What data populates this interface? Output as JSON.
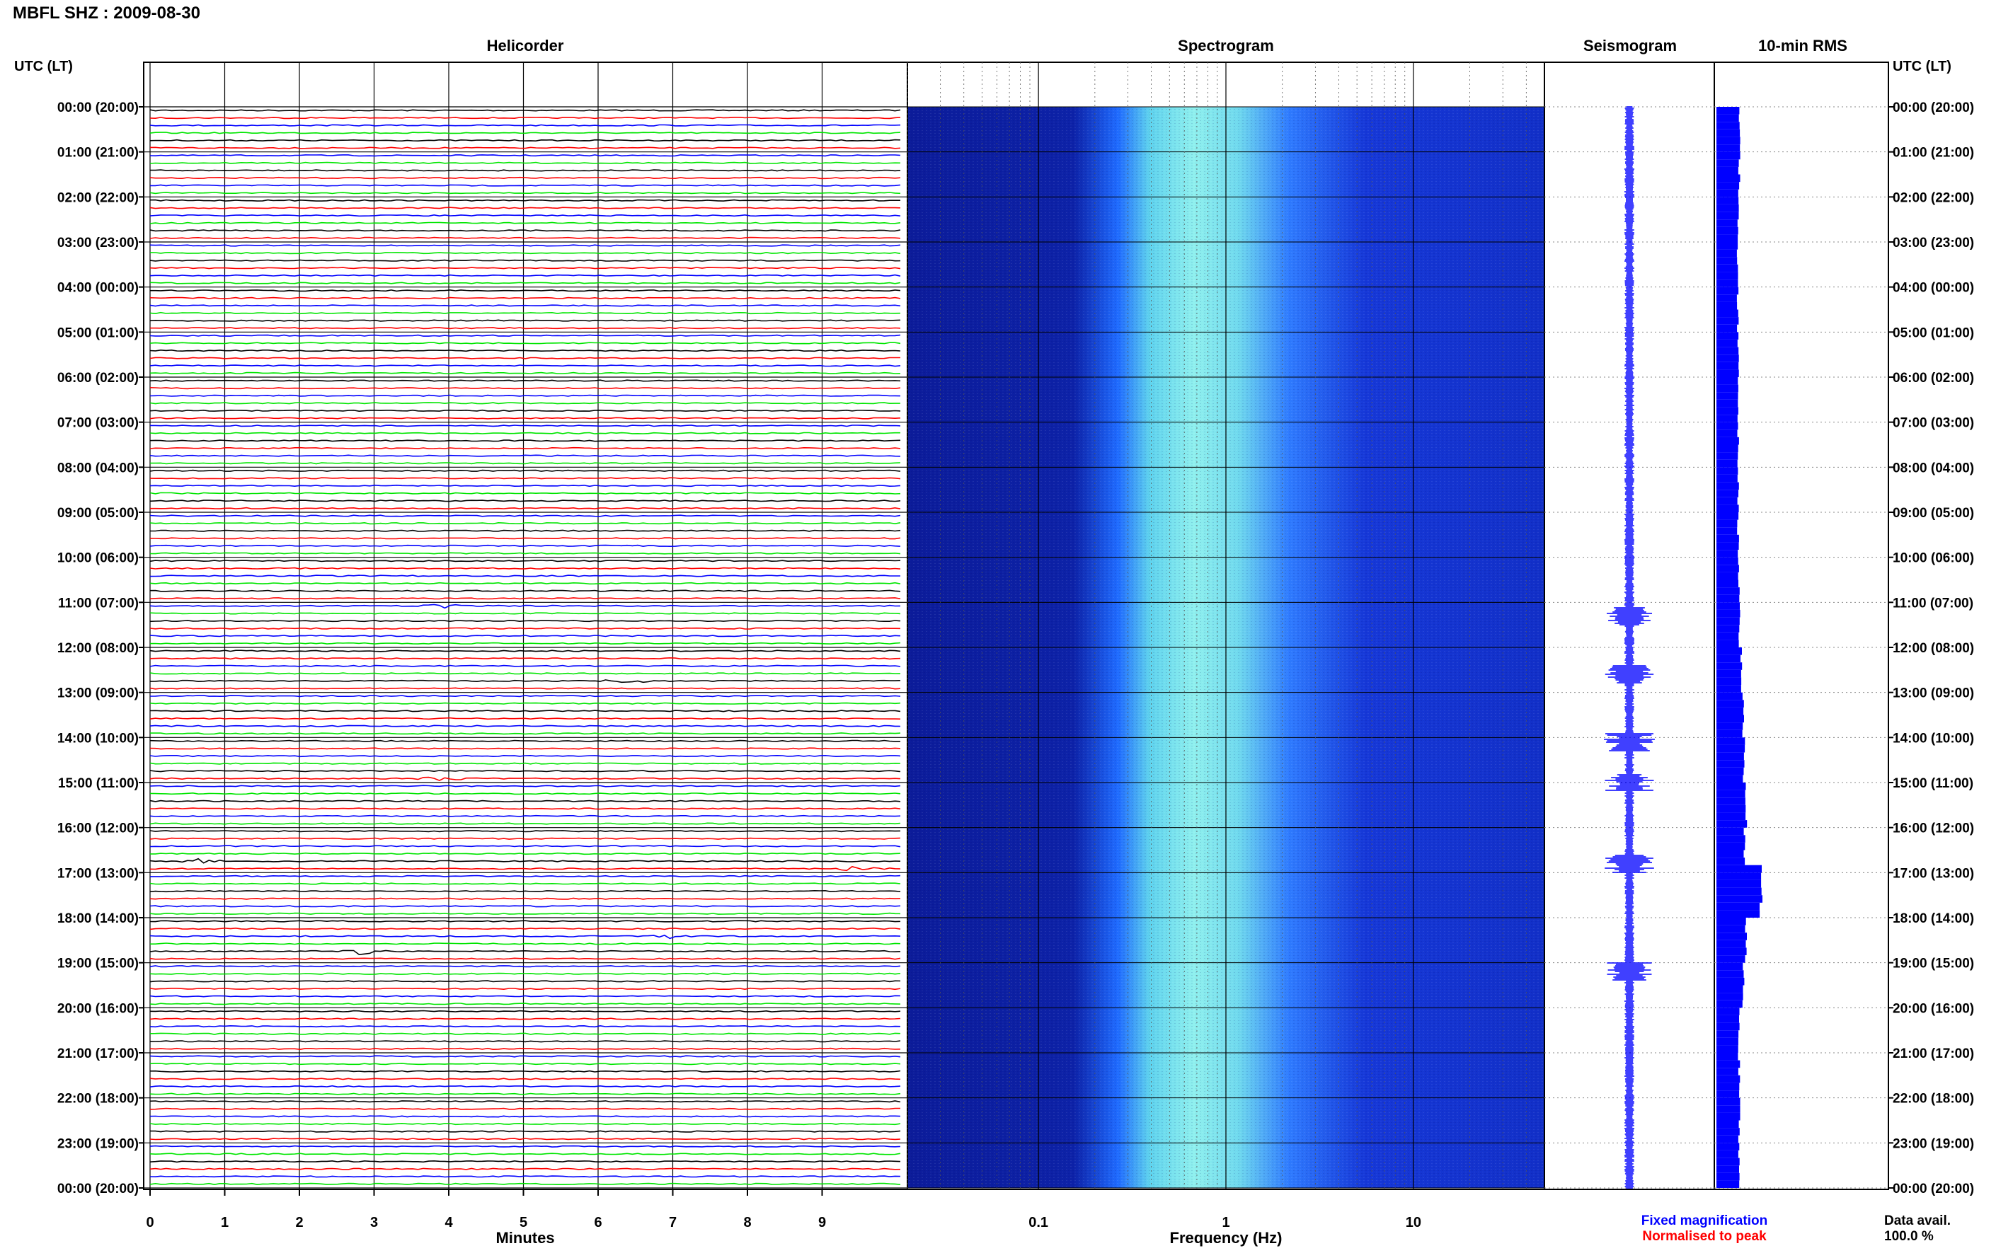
{
  "title": "MBFL SHZ : 2009-08-30",
  "axis_corner_left": "UTC (LT)",
  "axis_corner_right": "UTC (LT)",
  "panels": {
    "helicorder": "Helicorder",
    "spectrogram": "Spectrogram",
    "seismogram": "Seismogram",
    "rms": "10-min RMS"
  },
  "time_labels": [
    "00:00 (20:00)",
    "01:00 (21:00)",
    "02:00 (22:00)",
    "03:00 (23:00)",
    "04:00 (00:00)",
    "05:00 (01:00)",
    "06:00 (02:00)",
    "07:00 (03:00)",
    "08:00 (04:00)",
    "09:00 (05:00)",
    "10:00 (06:00)",
    "11:00 (07:00)",
    "12:00 (08:00)",
    "13:00 (09:00)",
    "14:00 (10:00)",
    "15:00 (11:00)",
    "16:00 (12:00)",
    "17:00 (13:00)",
    "18:00 (14:00)",
    "19:00 (15:00)",
    "20:00 (16:00)",
    "21:00 (17:00)",
    "22:00 (18:00)",
    "23:00 (19:00)",
    "00:00 (20:00)"
  ],
  "minute_ticks": [
    "0",
    "1",
    "2",
    "3",
    "4",
    "5",
    "6",
    "7",
    "8",
    "9"
  ],
  "minutes_label": "Minutes",
  "freq_ticks": [
    "0.1",
    "1",
    "10"
  ],
  "frequency_label": "Frequency (Hz)",
  "legend": {
    "fixed": "Fixed magnification",
    "normalised": "Normalised to peak"
  },
  "data_avail_label": "Data avail.",
  "data_avail_value": "100.0 %",
  "colors": {
    "trace_cycle": [
      "#000000",
      "#ff0000",
      "#0000ff",
      "#00e600"
    ],
    "spectrogram_low": "#0a1f9e",
    "spectrogram_mid": "#1f6bff",
    "spectrogram_high": "#7fe3e8",
    "seismogram": "#0000ff",
    "rms": "#0000ff",
    "legend_fixed": "#0000ff",
    "legend_normalised": "#ff0000"
  },
  "chart_data": [
    {
      "type": "line",
      "panel": "Helicorder",
      "xlabel": "Minutes",
      "xlim": [
        0,
        10
      ],
      "rows": 144,
      "row_minutes": 10,
      "events": [
        {
          "utc": "11:00",
          "minute": 3.9
        },
        {
          "utc": "12:40",
          "minute": 6.3
        },
        {
          "utc": "14:50",
          "minute": 3.9
        },
        {
          "utc": "16:40",
          "minute": 0.7
        },
        {
          "utc": "16:50",
          "minute": 9.5
        },
        {
          "utc": "18:40",
          "minute": 2.8
        },
        {
          "utc": "18:20",
          "minute": 6.9
        }
      ]
    },
    {
      "type": "heatmap",
      "panel": "Spectrogram",
      "xlabel": "Frequency (Hz)",
      "xscale": "log",
      "xlim": [
        0.02,
        50
      ],
      "peak_band_hz": [
        0.3,
        3
      ]
    },
    {
      "type": "line",
      "panel": "Seismogram",
      "notable_hours_utc": [
        11.3,
        12.6,
        14.1,
        15.0,
        16.8,
        19.2
      ]
    },
    {
      "type": "bar",
      "panel": "10-min RMS",
      "profile_hourly": [
        1.0,
        1.0,
        0.95,
        0.95,
        0.95,
        0.95,
        0.95,
        0.95,
        0.95,
        0.95,
        1.0,
        1.0,
        1.1,
        1.2,
        1.2,
        1.3,
        1.25,
        2.0,
        1.3,
        1.2,
        1.0,
        1.0,
        1.0,
        1.0
      ],
      "peak_utc": "16:50"
    }
  ]
}
